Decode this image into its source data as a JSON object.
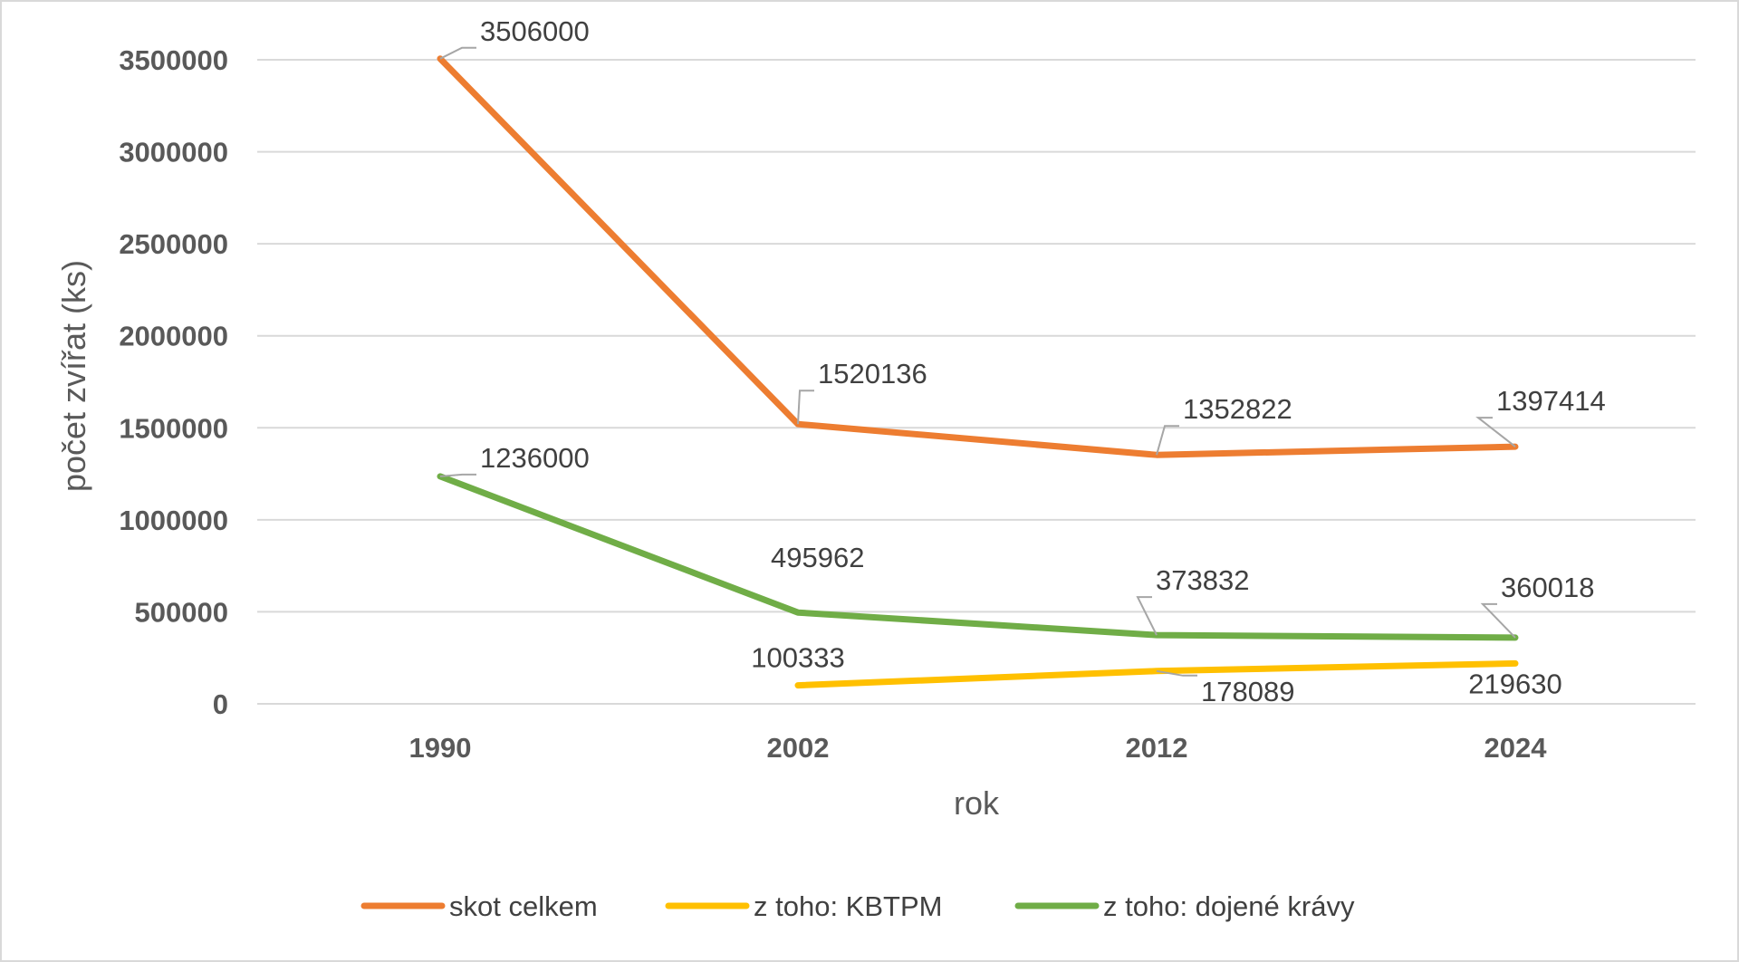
{
  "chart_data": {
    "type": "line",
    "title": "",
    "xlabel": "rok",
    "ylabel": "počet zvířat (ks)",
    "categories": [
      "1990",
      "2002",
      "2012",
      "2024"
    ],
    "ylim": [
      0,
      3500000
    ],
    "yticks": [
      "0",
      "500000",
      "1000000",
      "1500000",
      "2000000",
      "2500000",
      "3000000",
      "3500000"
    ],
    "grid": true,
    "legend_position": "bottom",
    "series": [
      {
        "name": "skot celkem",
        "color": "#ED7D31",
        "values": [
          3506000,
          1520136,
          1352822,
          1397414
        ],
        "labels": [
          "3506000",
          "1520136",
          "1352822",
          "1397414"
        ]
      },
      {
        "name": "z toho: KBTPM",
        "color": "#FFC000",
        "values": [
          null,
          100333,
          178089,
          219630
        ],
        "labels": [
          "",
          "100333",
          "178089",
          "219630"
        ]
      },
      {
        "name": "z toho: dojené krávy",
        "color": "#70AD47",
        "values": [
          1236000,
          495962,
          373832,
          360018
        ],
        "labels": [
          "1236000",
          "495962",
          "373832",
          "360018"
        ]
      }
    ]
  }
}
